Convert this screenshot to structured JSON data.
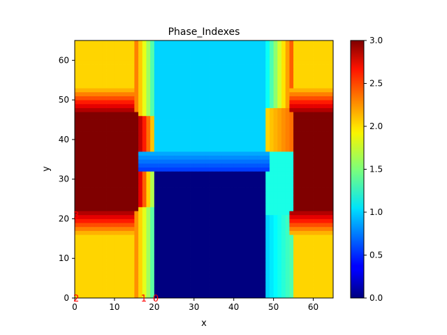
{
  "chart_data": {
    "type": "heatmap",
    "title": "Phase_Indexes",
    "xlabel": "x",
    "ylabel": "y",
    "xlim": [
      0,
      65
    ],
    "ylim": [
      0,
      65
    ],
    "x_ticks": [
      0,
      10,
      20,
      30,
      40,
      50,
      60
    ],
    "y_ticks": [
      0,
      10,
      20,
      30,
      40,
      50,
      60
    ],
    "colormap": "jet",
    "colorbar": {
      "min": 0.0,
      "max": 3.0,
      "ticks": [
        "0.0",
        "0.5",
        "1.0",
        "1.5",
        "2.0",
        "2.5",
        "3.0"
      ]
    },
    "annotations": [
      {
        "text": "2",
        "x": 0,
        "y": 0
      },
      {
        "text": "1",
        "x": 17,
        "y": 0
      },
      {
        "text": "0",
        "x": 20,
        "y": 0
      },
      {
        "text": "3",
        "x": 0,
        "y": 21
      }
    ],
    "annotation_color": "#ff0000",
    "regions": [
      {
        "phase": 2,
        "description": "outer yellow side regions (bottom and top)"
      },
      {
        "phase": 3,
        "description": "dark red side blocks between y≈21 and y≈47"
      },
      {
        "phase": 1,
        "description": "cyan top-centre block"
      },
      {
        "phase": 0,
        "description": "dark blue bottom-centre block"
      }
    ]
  }
}
